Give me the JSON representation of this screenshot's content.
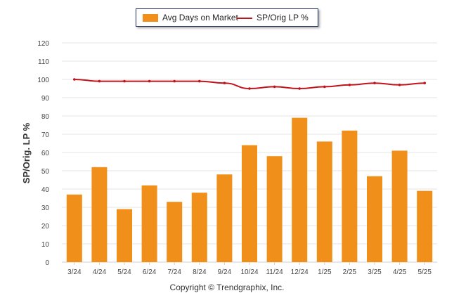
{
  "legend": {
    "bar_label": "Avg Days on Market",
    "line_label": "SP/Orig LP %"
  },
  "footer": "Copyright © Trendgraphix, Inc.",
  "colors": {
    "bar": "#f0901a",
    "line": "#c0141c",
    "grid": "#e6e6e6",
    "axis_text": "#444444"
  },
  "chart_data": {
    "type": "bar",
    "categories": [
      "3/24",
      "4/24",
      "5/24",
      "6/24",
      "7/24",
      "8/24",
      "9/24",
      "10/24",
      "11/24",
      "12/24",
      "1/25",
      "2/25",
      "3/25",
      "4/25",
      "5/25"
    ],
    "series": [
      {
        "name": "Avg Days on Market",
        "type": "bar",
        "values": [
          37,
          52,
          29,
          42,
          33,
          38,
          48,
          64,
          58,
          79,
          66,
          72,
          47,
          61,
          39
        ]
      },
      {
        "name": "SP/Orig LP %",
        "type": "line",
        "values": [
          100,
          99,
          99,
          99,
          99,
          99,
          98,
          95,
          96,
          95,
          96,
          97,
          98,
          97,
          98
        ]
      }
    ],
    "ylabel": "SP/Orig. LP %",
    "ylim": [
      0,
      120
    ],
    "yticks": [
      0,
      10,
      20,
      30,
      40,
      50,
      60,
      70,
      80,
      90,
      100,
      110,
      120
    ],
    "grid": true,
    "legend_position": "top-center"
  }
}
